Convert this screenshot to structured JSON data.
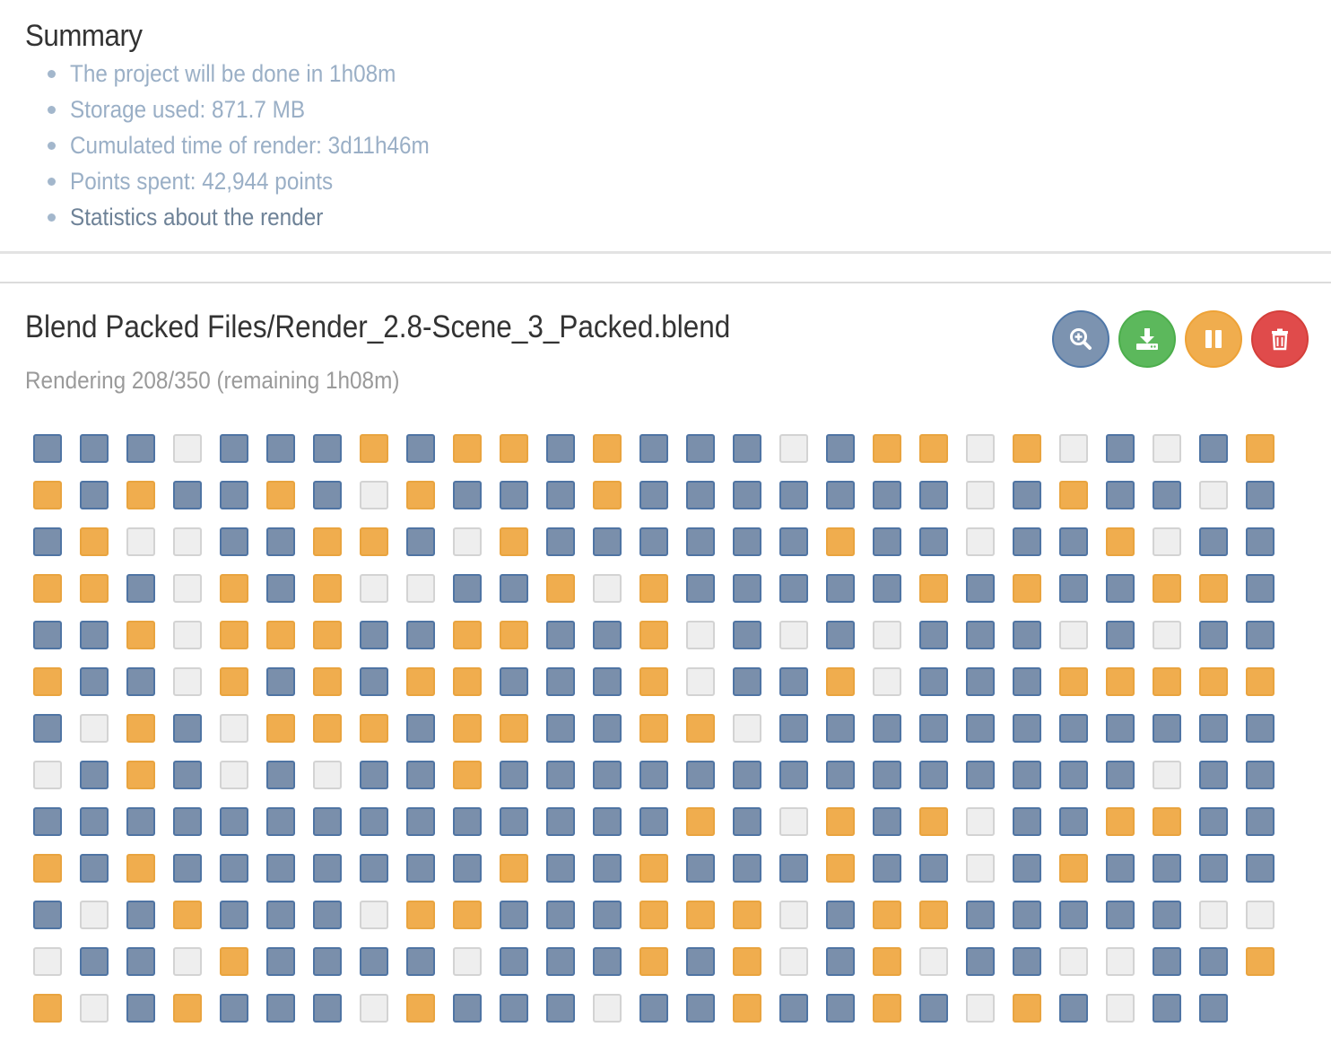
{
  "summary": {
    "title": "Summary",
    "items": [
      {
        "text": "The project will be done in 1h08m",
        "link": false
      },
      {
        "text": "Storage used: 871.7 MB",
        "link": false
      },
      {
        "text": "Cumulated time of render: 3d11h46m",
        "link": false
      },
      {
        "text": "Points spent: 42,944 points",
        "link": false
      },
      {
        "text": "Statistics about the render",
        "link": true
      }
    ]
  },
  "project": {
    "title": "Blend Packed Files/Render_2.8-Scene_3_Packed.blend",
    "status": "Rendering 208/350 (remaining 1h08m)",
    "actions": [
      {
        "name": "view",
        "icon": "magnify-plus-icon"
      },
      {
        "name": "download",
        "icon": "download-icon"
      },
      {
        "name": "pause",
        "icon": "pause-icon"
      },
      {
        "name": "delete",
        "icon": "trash-icon"
      }
    ]
  },
  "frame_colors": {
    "done": "#7a8fab",
    "rendering": "#f0ad4e",
    "waiting": "#eeeeee"
  },
  "frames": [
    "DDDWDDDRDRRDRDDDWDRRWRWDWDR",
    "RDRDDRDWRDDDRDDDDDDDWDRDDWD",
    "DRWWDDRRDWRDDDDDDRDDWDDRWDD",
    "RRDWRDRWWDDRWRDDDDDRDRDDRRD",
    "DDRWRRRDDRRDDRWDWDWDDDWDWDD",
    "RDDWRDRDRRDDDRWDDRWDDDRRRRR",
    "DWRDWRRRDRRDDRRWDDDDDDDDDDD",
    "WDRDWDWDDRDDDDDDDDDDDDDDWDD",
    "DDDDDDDDDDDDDDRDWRDRWDDRRDD",
    "RDRDDDDDDDRDDRDDDRDDWDRDDDD",
    "DWDRDDDWRRDDDRRRWDRRDDDDDWW",
    "WDDWRDDDDWDDDRDRWDRWDDWWDDR",
    "RWDRDDDWRDDDWDDRDDRDWRDWDD"
  ]
}
